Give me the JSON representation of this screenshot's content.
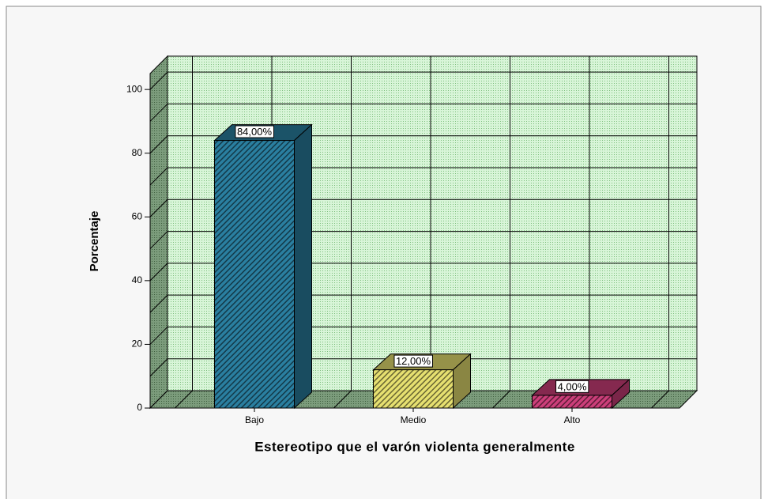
{
  "chart_data": {
    "type": "bar3d",
    "xlabel": "Estereotipo que el varón violenta generalmente",
    "ylabel": "Porcentaje",
    "categories": [
      "Bajo",
      "Medio",
      "Alto"
    ],
    "values": [
      84,
      12,
      4
    ],
    "value_labels": [
      "84,00%",
      "12,00%",
      "4,00%"
    ],
    "colors": [
      "#2a7fa0",
      "#e6e070",
      "#cc3f7a"
    ],
    "ylim": [
      0,
      105
    ],
    "yticks": [
      0,
      20,
      40,
      60,
      80,
      100
    ],
    "grid": true
  }
}
